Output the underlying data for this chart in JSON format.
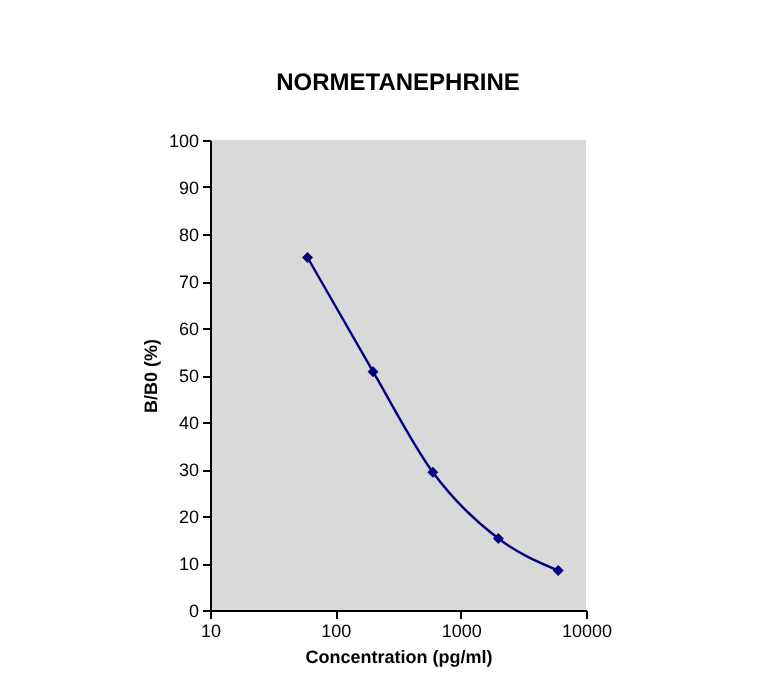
{
  "chart_data": {
    "type": "line",
    "title": "NORMETANEPHRINE",
    "xlabel": "Concentration (pg/ml)",
    "ylabel": "B/B0 (%)",
    "x": [
      60,
      200,
      600,
      2000,
      6000
    ],
    "series": [
      {
        "color": "#000080",
        "values": [
          75,
          50.7,
          29.3,
          15.2,
          8.4
        ]
      }
    ],
    "xlim": [
      10,
      10000
    ],
    "xticks": [
      10,
      100,
      1000,
      10000
    ],
    "ylim": [
      0,
      100
    ],
    "yticks": [
      0,
      10,
      20,
      30,
      40,
      50,
      60,
      70,
      80,
      90,
      100
    ],
    "log": "x",
    "grid": false,
    "marker": "diamond"
  }
}
